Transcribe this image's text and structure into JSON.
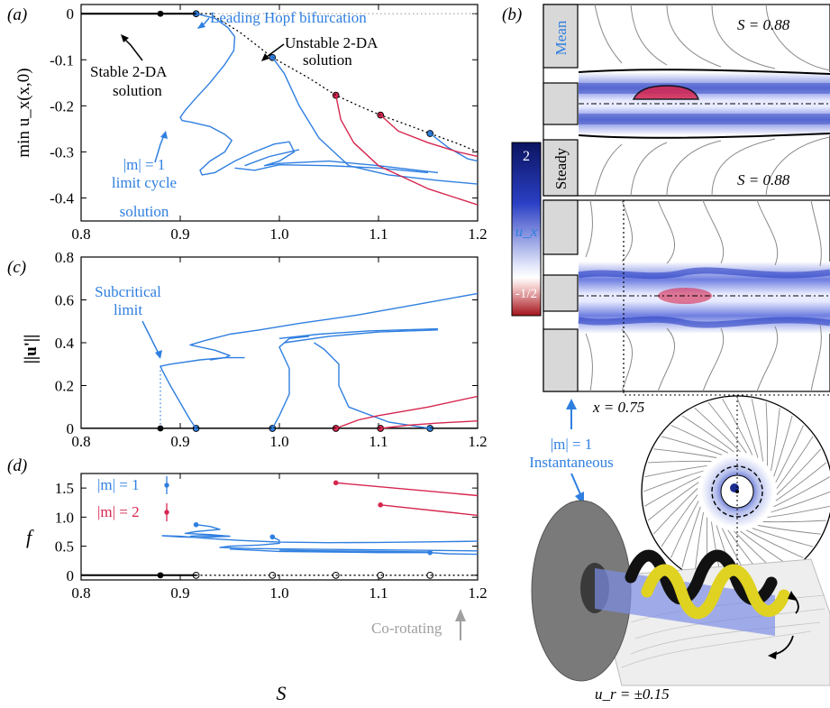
{
  "colors": {
    "blue": "#2f7fe0",
    "red": "#d6264f",
    "black": "#000000",
    "grey": "#a0a0a0",
    "navy": "#1a2b8f"
  },
  "chart_data": [
    {
      "panel": "(a)",
      "type": "line",
      "xlabel": "",
      "ylabel": "min u_x(x,0)",
      "xlim": [
        0.8,
        1.2
      ],
      "ylim": [
        -0.45,
        0.02
      ],
      "xticks": [
        "0.8",
        "0.9",
        "1.0",
        "1.1",
        "1.2"
      ],
      "yticks": [
        "0",
        "-0.1",
        "-0.2",
        "-0.3",
        "-0.4"
      ],
      "annotations": {
        "hopf": "Leading Hopf bifurcation",
        "unstable": [
          "Unstable 2-DA",
          "solution"
        ],
        "stable": [
          "Stable 2-DA",
          "solution"
        ],
        "limit": [
          "|m| = 1",
          "limit cycle",
          "solution"
        ]
      },
      "stable_branch": [
        [
          0.8,
          0.0
        ],
        [
          0.916,
          0.0
        ]
      ],
      "unstable_branch": [
        [
          0.916,
          0.0
        ],
        [
          0.93,
          0.0
        ],
        [
          0.96,
          -0.04
        ],
        [
          0.993,
          -0.095
        ],
        [
          1.03,
          -0.14
        ],
        [
          1.057,
          -0.177
        ],
        [
          1.08,
          -0.2
        ],
        [
          1.102,
          -0.22
        ],
        [
          1.13,
          -0.242
        ],
        [
          1.152,
          -0.26
        ],
        [
          1.18,
          -0.282
        ],
        [
          1.2,
          -0.3
        ]
      ],
      "dotted_ref": [
        [
          0.93,
          0.0
        ],
        [
          1.2,
          0.0
        ]
      ],
      "markers": [
        {
          "x": 0.88,
          "y": 0.0,
          "c": "black"
        },
        {
          "x": 0.916,
          "y": 0.0,
          "c": "blue"
        },
        {
          "x": 0.993,
          "y": -0.095,
          "c": "blue"
        },
        {
          "x": 1.057,
          "y": -0.177,
          "c": "red"
        },
        {
          "x": 1.102,
          "y": -0.22,
          "c": "red"
        },
        {
          "x": 1.152,
          "y": -0.26,
          "c": "blue"
        }
      ],
      "series": [
        {
          "color": "blue",
          "points": [
            [
              0.916,
              0.0
            ],
            [
              0.935,
              -0.01
            ],
            [
              0.948,
              -0.03
            ],
            [
              0.955,
              -0.05
            ],
            [
              0.954,
              -0.08
            ],
            [
              0.945,
              -0.11
            ],
            [
              0.93,
              -0.15
            ],
            [
              0.915,
              -0.185
            ],
            [
              0.905,
              -0.21
            ],
            [
              0.9,
              -0.225
            ],
            [
              0.902,
              -0.232
            ],
            [
              0.91,
              -0.235
            ],
            [
              0.93,
              -0.245
            ],
            [
              0.945,
              -0.262
            ],
            [
              0.952,
              -0.275
            ],
            [
              0.945,
              -0.3
            ],
            [
              0.93,
              -0.32
            ],
            [
              0.92,
              -0.34
            ],
            [
              0.922,
              -0.35
            ],
            [
              0.935,
              -0.345
            ],
            [
              0.955,
              -0.32
            ],
            [
              0.975,
              -0.3
            ],
            [
              0.995,
              -0.283
            ],
            [
              1.01,
              -0.278
            ],
            [
              1.015,
              -0.3
            ],
            [
              1.0,
              -0.32
            ],
            [
              0.985,
              -0.33
            ],
            [
              1.0,
              -0.325
            ],
            [
              1.05,
              -0.32
            ],
            [
              1.1,
              -0.33
            ],
            [
              1.16,
              -0.345
            ]
          ]
        },
        {
          "color": "blue",
          "points": [
            [
              0.965,
              -0.33
            ],
            [
              0.99,
              -0.31
            ],
            [
              1.01,
              -0.3
            ],
            [
              1.02,
              -0.295
            ]
          ]
        },
        {
          "color": "blue",
          "points": [
            [
              0.955,
              -0.335
            ],
            [
              0.975,
              -0.34
            ],
            [
              1.0,
              -0.328
            ],
            [
              1.05,
              -0.33
            ],
            [
              1.1,
              -0.335
            ],
            [
              1.15,
              -0.345
            ]
          ]
        },
        {
          "color": "blue",
          "points": [
            [
              0.993,
              -0.095
            ],
            [
              1.005,
              -0.13
            ],
            [
              1.02,
              -0.2
            ],
            [
              1.04,
              -0.27
            ],
            [
              1.07,
              -0.33
            ],
            [
              1.11,
              -0.35
            ],
            [
              1.16,
              -0.362
            ],
            [
              1.2,
              -0.37
            ]
          ]
        },
        {
          "color": "blue",
          "points": [
            [
              1.152,
              -0.26
            ],
            [
              1.17,
              -0.29
            ],
            [
              1.19,
              -0.315
            ],
            [
              1.2,
              -0.32
            ]
          ]
        },
        {
          "color": "red",
          "points": [
            [
              1.057,
              -0.177
            ],
            [
              1.062,
              -0.23
            ],
            [
              1.075,
              -0.28
            ],
            [
              1.1,
              -0.33
            ],
            [
              1.15,
              -0.38
            ],
            [
              1.2,
              -0.415
            ]
          ]
        },
        {
          "color": "red",
          "points": [
            [
              1.102,
              -0.22
            ],
            [
              1.12,
              -0.255
            ],
            [
              1.15,
              -0.28
            ],
            [
              1.18,
              -0.3
            ],
            [
              1.2,
              -0.31
            ]
          ]
        }
      ]
    },
    {
      "panel": "(c)",
      "type": "line",
      "xlabel": "",
      "ylabel": "||u'||",
      "xlim": [
        0.8,
        1.2
      ],
      "ylim": [
        0,
        0.8
      ],
      "xticks": [
        "0.8",
        "0.9",
        "1.0",
        "1.1",
        "1.2"
      ],
      "yticks": [
        "0",
        "0.2",
        "0.4",
        "0.6",
        "0.8"
      ],
      "annotations": {
        "subcritical": [
          "Subcritical",
          "limit"
        ]
      },
      "baseline": [
        [
          0.8,
          0.0
        ],
        [
          1.2,
          0.0
        ]
      ],
      "dotted_ref": [
        [
          0.88,
          0.0
        ],
        [
          0.88,
          0.29
        ]
      ],
      "markers": [
        {
          "x": 0.88,
          "y": 0.0,
          "c": "black"
        },
        {
          "x": 0.916,
          "y": 0.0,
          "c": "blue"
        },
        {
          "x": 0.993,
          "y": 0.0,
          "c": "blue"
        },
        {
          "x": 1.057,
          "y": 0.0,
          "c": "red"
        },
        {
          "x": 1.102,
          "y": 0.0,
          "c": "red"
        },
        {
          "x": 1.152,
          "y": 0.0,
          "c": "blue"
        }
      ],
      "series": [
        {
          "color": "blue",
          "points": [
            [
              0.916,
              0.0
            ],
            [
              0.91,
              0.04
            ],
            [
              0.9,
              0.12
            ],
            [
              0.89,
              0.2
            ],
            [
              0.882,
              0.27
            ],
            [
              0.88,
              0.29
            ],
            [
              0.89,
              0.3
            ],
            [
              0.92,
              0.32
            ],
            [
              0.945,
              0.33
            ],
            [
              0.95,
              0.34
            ],
            [
              0.935,
              0.365
            ],
            [
              0.91,
              0.39
            ],
            [
              0.925,
              0.41
            ],
            [
              0.95,
              0.44
            ],
            [
              0.98,
              0.46
            ],
            [
              1.02,
              0.49
            ],
            [
              1.08,
              0.53
            ],
            [
              1.14,
              0.58
            ],
            [
              1.2,
              0.63
            ]
          ]
        },
        {
          "color": "blue",
          "points": [
            [
              0.93,
              0.32
            ],
            [
              0.945,
              0.33
            ],
            [
              0.965,
              0.33
            ]
          ]
        },
        {
          "color": "blue",
          "points": [
            [
              0.993,
              0.0
            ],
            [
              1.0,
              0.06
            ],
            [
              1.01,
              0.16
            ],
            [
              1.01,
              0.28
            ],
            [
              1.0,
              0.38
            ],
            [
              1.01,
              0.42
            ],
            [
              1.03,
              0.43
            ]
          ]
        },
        {
          "color": "blue",
          "points": [
            [
              1.0,
              0.42
            ],
            [
              1.04,
              0.44
            ],
            [
              1.09,
              0.455
            ],
            [
              1.16,
              0.465
            ]
          ]
        },
        {
          "color": "blue",
          "points": [
            [
              1.005,
              0.4
            ],
            [
              1.05,
              0.43
            ],
            [
              1.1,
              0.45
            ],
            [
              1.16,
              0.46
            ]
          ]
        },
        {
          "color": "blue",
          "points": [
            [
              1.152,
              0.0
            ],
            [
              1.11,
              0.03
            ],
            [
              1.07,
              0.1
            ],
            [
              1.06,
              0.2
            ],
            [
              1.06,
              0.3
            ],
            [
              1.045,
              0.37
            ],
            [
              1.035,
              0.4
            ]
          ]
        },
        {
          "color": "red",
          "points": [
            [
              1.057,
              0.0
            ],
            [
              1.08,
              0.04
            ],
            [
              1.1,
              0.06
            ],
            [
              1.15,
              0.1
            ],
            [
              1.2,
              0.15
            ]
          ]
        },
        {
          "color": "red",
          "points": [
            [
              1.102,
              0.0
            ],
            [
              1.13,
              0.015
            ],
            [
              1.16,
              0.025
            ],
            [
              1.2,
              0.035
            ]
          ]
        }
      ]
    },
    {
      "panel": "(d)",
      "type": "line",
      "xlabel": "S",
      "ylabel": "f",
      "xlim": [
        0.8,
        1.2
      ],
      "ylim": [
        -0.08,
        1.75
      ],
      "xticks": [
        "0.8",
        "0.9",
        "1.0",
        "1.1",
        "1.2"
      ],
      "yticks": [
        "0",
        "0.5",
        "1.0",
        "1.5"
      ],
      "legend": [
        {
          "label": "|m| = 1",
          "color": "blue"
        },
        {
          "label": "|m| = 2",
          "color": "red"
        }
      ],
      "annotations": {
        "corotating": "Co-rotating"
      },
      "baseline_solid": [
        [
          0.8,
          0.0
        ],
        [
          0.916,
          0.0
        ]
      ],
      "baseline_dotted": [
        [
          0.916,
          0.0
        ],
        [
          1.2,
          0.0
        ]
      ],
      "markers": [
        {
          "x": 0.88,
          "y": 0.0,
          "c": "black",
          "open": false
        },
        {
          "x": 0.916,
          "y": 0.0,
          "c": "black",
          "open": true
        },
        {
          "x": 0.993,
          "y": 0.0,
          "c": "black",
          "open": true
        },
        {
          "x": 1.057,
          "y": 0.0,
          "c": "black",
          "open": true
        },
        {
          "x": 1.102,
          "y": 0.0,
          "c": "black",
          "open": true
        },
        {
          "x": 1.152,
          "y": 0.0,
          "c": "black",
          "open": true
        },
        {
          "x": 0.916,
          "y": 0.87,
          "c": "blue",
          "open": false
        },
        {
          "x": 0.993,
          "y": 0.66,
          "c": "blue",
          "open": false
        },
        {
          "x": 1.152,
          "y": 0.39,
          "c": "blue",
          "open": false
        },
        {
          "x": 1.057,
          "y": 1.59,
          "c": "red",
          "open": false
        },
        {
          "x": 1.102,
          "y": 1.21,
          "c": "red",
          "open": false
        }
      ],
      "series": [
        {
          "color": "blue",
          "points": [
            [
              0.916,
              0.87
            ],
            [
              0.93,
              0.84
            ],
            [
              0.94,
              0.79
            ],
            [
              0.915,
              0.75
            ],
            [
              0.905,
              0.72
            ],
            [
              0.93,
              0.7
            ],
            [
              0.95,
              0.67
            ],
            [
              0.92,
              0.65
            ],
            [
              0.9,
              0.66
            ],
            [
              0.882,
              0.68
            ],
            [
              0.9,
              0.67
            ],
            [
              0.93,
              0.63
            ],
            [
              0.96,
              0.6
            ],
            [
              1.0,
              0.57
            ],
            [
              1.05,
              0.56
            ],
            [
              1.1,
              0.565
            ],
            [
              1.15,
              0.575
            ],
            [
              1.2,
              0.585
            ]
          ]
        },
        {
          "color": "blue",
          "points": [
            [
              0.95,
              0.67
            ],
            [
              0.935,
              0.68
            ],
            [
              0.92,
              0.68
            ],
            [
              0.91,
              0.67
            ]
          ]
        },
        {
          "color": "blue",
          "points": [
            [
              0.993,
              0.66
            ],
            [
              1.0,
              0.6
            ],
            [
              1.0,
              0.55
            ],
            [
              0.98,
              0.52
            ],
            [
              0.95,
              0.5
            ],
            [
              0.94,
              0.48
            ],
            [
              0.97,
              0.46
            ],
            [
              1.02,
              0.45
            ],
            [
              1.08,
              0.44
            ],
            [
              1.14,
              0.43
            ],
            [
              1.2,
              0.42
            ]
          ]
        },
        {
          "color": "blue",
          "points": [
            [
              0.95,
              0.45
            ],
            [
              1.0,
              0.41
            ],
            [
              1.05,
              0.4
            ],
            [
              1.1,
              0.39
            ],
            [
              1.152,
              0.39
            ]
          ]
        },
        {
          "color": "blue",
          "points": [
            [
              1.152,
              0.39
            ],
            [
              1.17,
              0.37
            ],
            [
              1.2,
              0.36
            ]
          ]
        },
        {
          "color": "blue",
          "points": [
            [
              1.0,
              0.43
            ],
            [
              1.05,
              0.42
            ],
            [
              1.1,
              0.41
            ],
            [
              1.15,
              0.4
            ]
          ]
        },
        {
          "color": "red",
          "points": [
            [
              1.057,
              1.59
            ],
            [
              1.2,
              1.37
            ]
          ]
        },
        {
          "color": "red",
          "points": [
            [
              1.102,
              1.21
            ],
            [
              1.2,
              1.03
            ]
          ]
        }
      ]
    }
  ],
  "panel_b": {
    "label": "(b)",
    "mean_label": "Mean",
    "steady_label": "Steady",
    "s_top": "S = 0.88",
    "s_bottom": "S = 0.88",
    "colorbar": {
      "top": "2",
      "var": "u_x",
      "bottom": "-1/2"
    },
    "x_label": "x = 0.75",
    "instantaneous": [
      "|m| = 1",
      "Instantaneous"
    ],
    "ur_label": "u_r = ±0.15"
  }
}
